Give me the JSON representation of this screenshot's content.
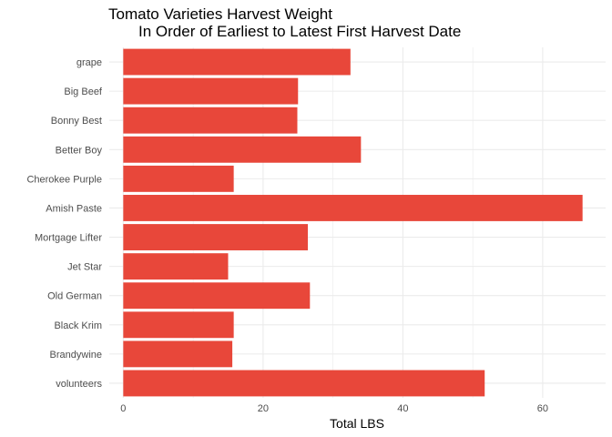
{
  "chart_data": {
    "type": "bar",
    "orientation": "horizontal",
    "title": "Tomato Varieties Harvest Weight",
    "subtitle": "In Order of Earliest to Latest First Harvest Date",
    "xlabel": "Total LBS",
    "ylabel": "",
    "categories": [
      "grape",
      "Big Beef",
      "Bonny Best",
      "Better Boy",
      "Cherokee Purple",
      "Amish Paste",
      "Mortgage Lifter",
      "Jet Star",
      "Old German",
      "Black Krim",
      "Brandywine",
      "volunteers"
    ],
    "values": [
      32.5,
      25.0,
      24.9,
      34.0,
      15.8,
      65.7,
      26.4,
      15.0,
      26.7,
      15.8,
      15.6,
      51.7
    ],
    "xlim": [
      -2,
      69
    ],
    "x_ticks": [
      0,
      20,
      40,
      60
    ],
    "grid": true,
    "legend": "none",
    "bar_color": "#E8473A",
    "grid_color": "#EBEBEB"
  }
}
